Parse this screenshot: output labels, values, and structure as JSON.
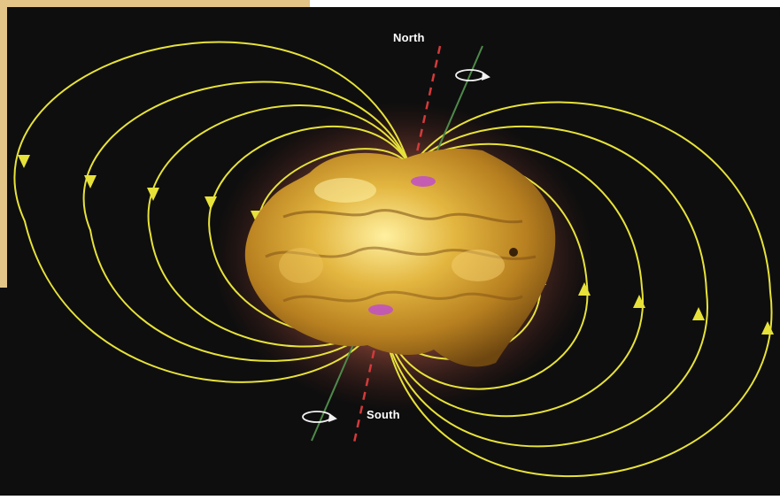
{
  "labels": {
    "north": "North",
    "south": "South"
  },
  "colors": {
    "background": "#0e0e0e",
    "field_lines": "#e7e23a",
    "magnetic_axis": "#d43a3a",
    "rotation_axis": "#4e8a4a",
    "glow": "#e0735a",
    "nugget": "#c99a2c",
    "pole_accent": "#c04fc8",
    "corner_panel": "#e2c587"
  },
  "icons": {
    "field_arrow": "arrowhead-icon",
    "spin": "rotation-arrow-icon"
  }
}
